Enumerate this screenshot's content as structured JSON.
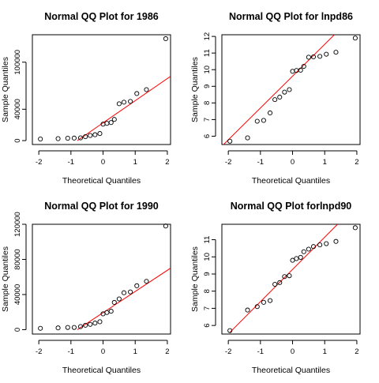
{
  "chart_data": [
    {
      "type": "scatter",
      "title": "Normal QQ Plot for 1986",
      "xlabel": "Theoretical Quantiles",
      "ylabel": "Sample Quantiles",
      "xlim": [
        -2.2,
        2.1
      ],
      "ylim": [
        -5000,
        135000
      ],
      "xticks": [
        -2,
        -1,
        0,
        1,
        2
      ],
      "yticks": [
        0,
        40000,
        100000
      ],
      "ytick_labels": [
        "0",
        "40000",
        "100000"
      ],
      "reference_line_color": "#ff0000",
      "reference_line": [
        [
          -0.8,
          0
        ],
        [
          2.1,
          82000
        ]
      ],
      "points": [
        [
          -1.95,
          2000
        ],
        [
          -1.4,
          2500
        ],
        [
          -1.1,
          3000
        ],
        [
          -0.9,
          3200
        ],
        [
          -0.7,
          3500
        ],
        [
          -0.55,
          5000
        ],
        [
          -0.4,
          6500
        ],
        [
          -0.25,
          7500
        ],
        [
          -0.1,
          9000
        ],
        [
          0.0,
          21000
        ],
        [
          0.12,
          22000
        ],
        [
          0.25,
          23000
        ],
        [
          0.35,
          27000
        ],
        [
          0.5,
          47000
        ],
        [
          0.65,
          49000
        ],
        [
          0.85,
          50000
        ],
        [
          1.05,
          60000
        ],
        [
          1.35,
          65000
        ],
        [
          1.95,
          130000
        ]
      ]
    },
    {
      "type": "scatter",
      "title": "Normal QQ Plot for lnpd86",
      "xlabel": "Theoretical Quantiles",
      "ylabel": "Sample Quantiles",
      "xlim": [
        -2.2,
        2.1
      ],
      "ylim": [
        5.5,
        12.1
      ],
      "xticks": [
        -2,
        -1,
        0,
        1,
        2
      ],
      "yticks": [
        6,
        7,
        8,
        9,
        10,
        11,
        12
      ],
      "ytick_labels": [
        "6",
        "7",
        "8",
        "9",
        "10",
        "11",
        "12"
      ],
      "reference_line_color": "#ff0000",
      "reference_line": [
        [
          -2.2,
          5.4
        ],
        [
          1.3,
          12.1
        ]
      ],
      "points": [
        [
          -1.95,
          5.7
        ],
        [
          -1.4,
          5.9
        ],
        [
          -1.1,
          6.9
        ],
        [
          -0.9,
          6.95
        ],
        [
          -0.7,
          7.4
        ],
        [
          -0.55,
          8.2
        ],
        [
          -0.4,
          8.35
        ],
        [
          -0.25,
          8.65
        ],
        [
          -0.1,
          8.8
        ],
        [
          0.0,
          9.9
        ],
        [
          0.12,
          9.95
        ],
        [
          0.25,
          9.97
        ],
        [
          0.35,
          10.2
        ],
        [
          0.5,
          10.75
        ],
        [
          0.65,
          10.77
        ],
        [
          0.85,
          10.8
        ],
        [
          1.05,
          10.93
        ],
        [
          1.35,
          11.05
        ],
        [
          1.95,
          11.9
        ]
      ]
    },
    {
      "type": "scatter",
      "title": "Normal QQ Plot for 1990",
      "xlabel": "Theoretical Quantiles",
      "ylabel": "Sample Quantiles",
      "xlim": [
        -2.2,
        2.1
      ],
      "ylim": [
        -5000,
        120000
      ],
      "xticks": [
        -2,
        -1,
        0,
        1,
        2
      ],
      "yticks": [
        0,
        40000,
        80000,
        120000
      ],
      "ytick_labels": [
        "0",
        "40000",
        "80000",
        "120000"
      ],
      "reference_line_color": "#ff0000",
      "reference_line": [
        [
          -0.8,
          0
        ],
        [
          2.1,
          70000
        ]
      ],
      "points": [
        [
          -1.95,
          1500
        ],
        [
          -1.4,
          2000
        ],
        [
          -1.1,
          2500
        ],
        [
          -0.9,
          2500
        ],
        [
          -0.7,
          3500
        ],
        [
          -0.55,
          5000
        ],
        [
          -0.4,
          6000
        ],
        [
          -0.25,
          7500
        ],
        [
          -0.1,
          9000
        ],
        [
          0.0,
          18000
        ],
        [
          0.12,
          19500
        ],
        [
          0.25,
          21000
        ],
        [
          0.35,
          31000
        ],
        [
          0.5,
          35000
        ],
        [
          0.65,
          42000
        ],
        [
          0.85,
          43000
        ],
        [
          1.05,
          50000
        ],
        [
          1.35,
          55000
        ],
        [
          1.95,
          118000
        ]
      ]
    },
    {
      "type": "scatter",
      "title": "Normal QQ Plot forlnpd90",
      "xlabel": "Theoretical Quantiles",
      "ylabel": "Sample Quantiles",
      "xlim": [
        -2.2,
        2.1
      ],
      "ylim": [
        5.5,
        11.9
      ],
      "xticks": [
        -2,
        -1,
        0,
        1,
        2
      ],
      "yticks": [
        6,
        7,
        8,
        9,
        10,
        11
      ],
      "ytick_labels": [
        "6",
        "7",
        "8",
        "9",
        "10",
        "11"
      ],
      "reference_line_color": "#ff0000",
      "reference_line": [
        [
          -1.95,
          5.6
        ],
        [
          1.4,
          11.9
        ]
      ],
      "points": [
        [
          -1.95,
          5.7
        ],
        [
          -1.4,
          6.9
        ],
        [
          -1.1,
          7.1
        ],
        [
          -0.9,
          7.35
        ],
        [
          -0.7,
          7.45
        ],
        [
          -0.55,
          8.4
        ],
        [
          -0.4,
          8.5
        ],
        [
          -0.25,
          8.85
        ],
        [
          -0.1,
          8.9
        ],
        [
          0.0,
          9.8
        ],
        [
          0.12,
          9.9
        ],
        [
          0.25,
          9.97
        ],
        [
          0.35,
          10.3
        ],
        [
          0.5,
          10.45
        ],
        [
          0.65,
          10.6
        ],
        [
          0.85,
          10.7
        ],
        [
          1.05,
          10.77
        ],
        [
          1.35,
          10.9
        ],
        [
          1.95,
          11.7
        ]
      ]
    }
  ]
}
